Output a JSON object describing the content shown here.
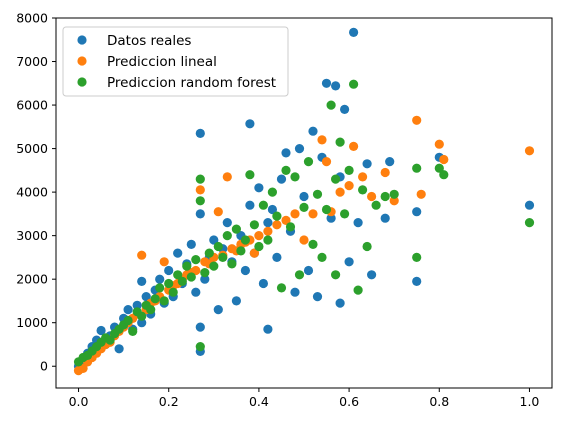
{
  "chart_data": {
    "type": "scatter",
    "title": "",
    "xlabel": "",
    "ylabel": "",
    "xlim": [
      -0.05,
      1.05
    ],
    "ylim": [
      -500,
      8000
    ],
    "xticks": [
      0.0,
      0.2,
      0.4,
      0.6,
      0.8,
      1.0
    ],
    "xtick_labels": [
      "0.0",
      "0.2",
      "0.4",
      "0.6",
      "0.8",
      "1.0"
    ],
    "yticks": [
      0,
      1000,
      2000,
      3000,
      4000,
      5000,
      6000,
      7000,
      8000
    ],
    "ytick_labels": [
      "0",
      "1000",
      "2000",
      "3000",
      "4000",
      "5000",
      "6000",
      "7000",
      "8000"
    ],
    "grid": false,
    "legend_position": "top-left",
    "series": [
      {
        "name": "Datos reales",
        "color": "#1f77b4",
        "points": [
          [
            0.0,
            0
          ],
          [
            0.01,
            150
          ],
          [
            0.02,
            300
          ],
          [
            0.03,
            450
          ],
          [
            0.04,
            600
          ],
          [
            0.05,
            820
          ],
          [
            0.06,
            500
          ],
          [
            0.07,
            700
          ],
          [
            0.08,
            900
          ],
          [
            0.09,
            400
          ],
          [
            0.1,
            1100
          ],
          [
            0.11,
            1300
          ],
          [
            0.12,
            850
          ],
          [
            0.13,
            1400
          ],
          [
            0.14,
            1000
          ],
          [
            0.14,
            1950
          ],
          [
            0.15,
            1600
          ],
          [
            0.16,
            1200
          ],
          [
            0.17,
            1750
          ],
          [
            0.18,
            2000
          ],
          [
            0.19,
            1450
          ],
          [
            0.2,
            2200
          ],
          [
            0.21,
            1600
          ],
          [
            0.22,
            2600
          ],
          [
            0.23,
            1900
          ],
          [
            0.24,
            2350
          ],
          [
            0.25,
            2800
          ],
          [
            0.26,
            1700
          ],
          [
            0.27,
            5350
          ],
          [
            0.27,
            3500
          ],
          [
            0.27,
            340
          ],
          [
            0.27,
            900
          ],
          [
            0.28,
            2000
          ],
          [
            0.29,
            2500
          ],
          [
            0.3,
            2900
          ],
          [
            0.31,
            1300
          ],
          [
            0.32,
            2700
          ],
          [
            0.33,
            3300
          ],
          [
            0.34,
            2400
          ],
          [
            0.35,
            1500
          ],
          [
            0.36,
            3000
          ],
          [
            0.37,
            2200
          ],
          [
            0.38,
            5570
          ],
          [
            0.38,
            3700
          ],
          [
            0.39,
            2600
          ],
          [
            0.4,
            4100
          ],
          [
            0.41,
            1900
          ],
          [
            0.42,
            850
          ],
          [
            0.42,
            3300
          ],
          [
            0.43,
            3600
          ],
          [
            0.44,
            2500
          ],
          [
            0.45,
            4300
          ],
          [
            0.46,
            4900
          ],
          [
            0.47,
            3100
          ],
          [
            0.48,
            1700
          ],
          [
            0.49,
            5000
          ],
          [
            0.5,
            3900
          ],
          [
            0.51,
            2200
          ],
          [
            0.52,
            5400
          ],
          [
            0.53,
            1600
          ],
          [
            0.54,
            4800
          ],
          [
            0.55,
            6500
          ],
          [
            0.56,
            3400
          ],
          [
            0.57,
            6440
          ],
          [
            0.58,
            4350
          ],
          [
            0.59,
            5900
          ],
          [
            0.6,
            2400
          ],
          [
            0.61,
            7670
          ],
          [
            0.62,
            3300
          ],
          [
            0.64,
            4650
          ],
          [
            0.65,
            2100
          ],
          [
            0.68,
            3400
          ],
          [
            0.69,
            4700
          ],
          [
            0.75,
            3550
          ],
          [
            0.75,
            1950
          ],
          [
            0.8,
            4800
          ],
          [
            1.0,
            3700
          ],
          [
            0.58,
            1450
          ]
        ]
      },
      {
        "name": "Prediccion lineal",
        "color": "#ff7f0e",
        "points": [
          [
            0.0,
            -100
          ],
          [
            0.01,
            -50
          ],
          [
            0.02,
            100
          ],
          [
            0.03,
            200
          ],
          [
            0.04,
            300
          ],
          [
            0.05,
            400
          ],
          [
            0.06,
            500
          ],
          [
            0.07,
            550
          ],
          [
            0.08,
            700
          ],
          [
            0.09,
            800
          ],
          [
            0.1,
            900
          ],
          [
            0.11,
            1000
          ],
          [
            0.12,
            1100
          ],
          [
            0.13,
            1200
          ],
          [
            0.14,
            2550
          ],
          [
            0.15,
            1300
          ],
          [
            0.16,
            1450
          ],
          [
            0.17,
            1500
          ],
          [
            0.18,
            1600
          ],
          [
            0.19,
            2400
          ],
          [
            0.2,
            1750
          ],
          [
            0.21,
            1850
          ],
          [
            0.22,
            1900
          ],
          [
            0.23,
            2000
          ],
          [
            0.24,
            2100
          ],
          [
            0.25,
            2150
          ],
          [
            0.26,
            2200
          ],
          [
            0.27,
            4050
          ],
          [
            0.28,
            2400
          ],
          [
            0.29,
            2350
          ],
          [
            0.3,
            2500
          ],
          [
            0.31,
            3550
          ],
          [
            0.32,
            2550
          ],
          [
            0.33,
            4350
          ],
          [
            0.34,
            2700
          ],
          [
            0.35,
            2650
          ],
          [
            0.36,
            2800
          ],
          [
            0.37,
            2850
          ],
          [
            0.38,
            2900
          ],
          [
            0.39,
            2600
          ],
          [
            0.4,
            3000
          ],
          [
            0.42,
            3100
          ],
          [
            0.44,
            3250
          ],
          [
            0.46,
            3350
          ],
          [
            0.48,
            3500
          ],
          [
            0.5,
            2900
          ],
          [
            0.52,
            3500
          ],
          [
            0.54,
            5200
          ],
          [
            0.55,
            4700
          ],
          [
            0.56,
            3550
          ],
          [
            0.58,
            4000
          ],
          [
            0.6,
            4150
          ],
          [
            0.61,
            5050
          ],
          [
            0.63,
            4350
          ],
          [
            0.65,
            3900
          ],
          [
            0.68,
            4450
          ],
          [
            0.7,
            3800
          ],
          [
            0.75,
            5650
          ],
          [
            0.76,
            3950
          ],
          [
            0.8,
            5100
          ],
          [
            0.81,
            4750
          ],
          [
            1.0,
            4950
          ]
        ]
      },
      {
        "name": "Prediccion random forest",
        "color": "#2ca02c",
        "points": [
          [
            0.0,
            100
          ],
          [
            0.01,
            200
          ],
          [
            0.02,
            250
          ],
          [
            0.03,
            350
          ],
          [
            0.04,
            450
          ],
          [
            0.05,
            550
          ],
          [
            0.06,
            650
          ],
          [
            0.07,
            600
          ],
          [
            0.08,
            750
          ],
          [
            0.09,
            850
          ],
          [
            0.1,
            950
          ],
          [
            0.11,
            1050
          ],
          [
            0.12,
            800
          ],
          [
            0.13,
            1250
          ],
          [
            0.14,
            1150
          ],
          [
            0.15,
            1400
          ],
          [
            0.16,
            1300
          ],
          [
            0.17,
            1550
          ],
          [
            0.18,
            1800
          ],
          [
            0.19,
            1500
          ],
          [
            0.2,
            1900
          ],
          [
            0.21,
            1700
          ],
          [
            0.22,
            2100
          ],
          [
            0.23,
            1950
          ],
          [
            0.24,
            2300
          ],
          [
            0.25,
            2050
          ],
          [
            0.26,
            2450
          ],
          [
            0.27,
            4300
          ],
          [
            0.27,
            3800
          ],
          [
            0.27,
            450
          ],
          [
            0.28,
            2150
          ],
          [
            0.29,
            2600
          ],
          [
            0.3,
            2300
          ],
          [
            0.31,
            2750
          ],
          [
            0.32,
            2500
          ],
          [
            0.33,
            3000
          ],
          [
            0.34,
            2350
          ],
          [
            0.35,
            3150
          ],
          [
            0.36,
            2650
          ],
          [
            0.37,
            2900
          ],
          [
            0.38,
            4400
          ],
          [
            0.39,
            3250
          ],
          [
            0.4,
            2750
          ],
          [
            0.41,
            3700
          ],
          [
            0.42,
            2900
          ],
          [
            0.43,
            4000
          ],
          [
            0.44,
            3450
          ],
          [
            0.45,
            1800
          ],
          [
            0.46,
            4500
          ],
          [
            0.47,
            3200
          ],
          [
            0.48,
            4350
          ],
          [
            0.49,
            2100
          ],
          [
            0.5,
            3650
          ],
          [
            0.51,
            4700
          ],
          [
            0.52,
            2800
          ],
          [
            0.53,
            3950
          ],
          [
            0.54,
            2500
          ],
          [
            0.55,
            3600
          ],
          [
            0.56,
            6000
          ],
          [
            0.57,
            4300
          ],
          [
            0.58,
            5150
          ],
          [
            0.59,
            3500
          ],
          [
            0.6,
            4500
          ],
          [
            0.61,
            6480
          ],
          [
            0.62,
            1750
          ],
          [
            0.63,
            4050
          ],
          [
            0.64,
            2750
          ],
          [
            0.66,
            3700
          ],
          [
            0.68,
            3900
          ],
          [
            0.7,
            3950
          ],
          [
            0.75,
            2500
          ],
          [
            0.75,
            4550
          ],
          [
            0.8,
            4550
          ],
          [
            0.81,
            4400
          ],
          [
            1.0,
            3300
          ],
          [
            0.57,
            2100
          ]
        ]
      }
    ]
  }
}
